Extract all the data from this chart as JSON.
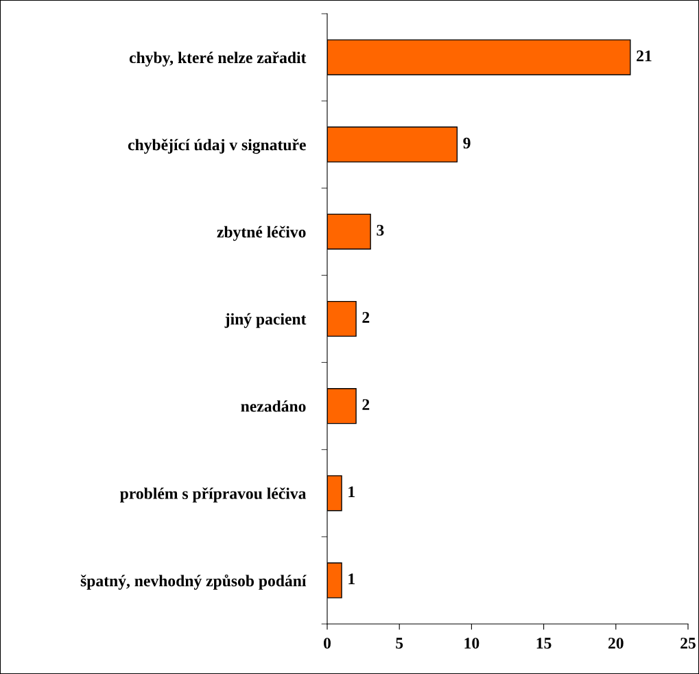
{
  "chart_data": {
    "type": "bar",
    "orientation": "horizontal",
    "categories": [
      "chyby, které nelze zařadit",
      "chybějící údaj v signatuře",
      "zbytné léčivo",
      "jiný pacient",
      "nezadáno",
      "problém s přípravou léčiva",
      "špatný, nevhodný způsob podání"
    ],
    "values": [
      21,
      9,
      3,
      2,
      2,
      1,
      1
    ],
    "color": "#ff6600",
    "xlim": [
      0,
      25
    ],
    "xticks": [
      0,
      5,
      10,
      15,
      20,
      25
    ],
    "grid": false,
    "legend": false,
    "data_labels": true
  }
}
